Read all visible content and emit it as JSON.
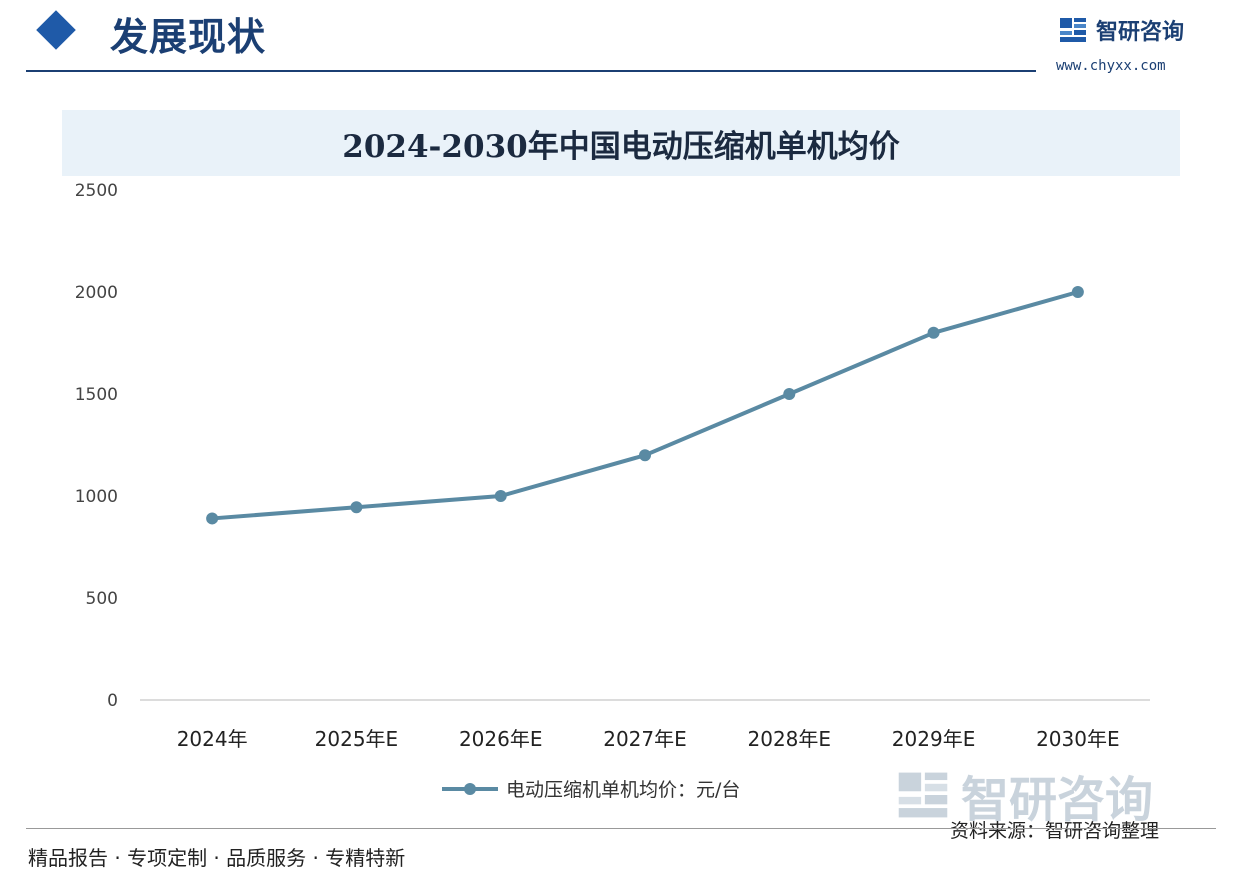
{
  "header": {
    "title": "发展现状"
  },
  "brand": {
    "name": "智研咨询",
    "url": "www.chyxx.com"
  },
  "chart_data": {
    "type": "line",
    "title": "2024-2030年中国电动压缩机单机均价",
    "categories": [
      "2024年",
      "2025年E",
      "2026年E",
      "2027年E",
      "2028年E",
      "2029年E",
      "2030年E"
    ],
    "series": [
      {
        "name": "电动压缩机单机均价：元/台",
        "values": [
          890,
          945,
          1000,
          1200,
          1500,
          1800,
          2000
        ],
        "color": "#5a8aa3"
      }
    ],
    "ylim": [
      0,
      2500
    ],
    "yticks": [
      0,
      500,
      1000,
      1500,
      2000,
      2500
    ],
    "legend_position": "bottom",
    "grid": false
  },
  "footer": {
    "slogan": "精品报告 · 专项定制 · 品质服务 · 专精特新",
    "source": "资料来源：智研咨询整理"
  },
  "watermark": {
    "text": "智研咨询"
  }
}
